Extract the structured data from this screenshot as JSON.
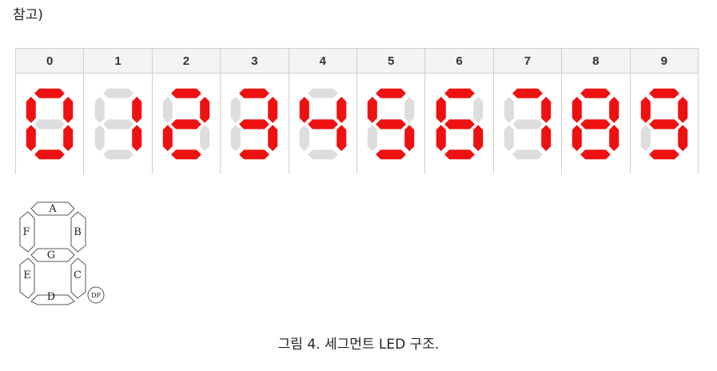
{
  "intro_text": "참고)",
  "segments_table": {
    "on_color": "#ee1111",
    "off_color": "#dddddd",
    "digits": [
      {
        "label": "0",
        "segments": [
          "A",
          "B",
          "C",
          "D",
          "E",
          "F"
        ]
      },
      {
        "label": "1",
        "segments": [
          "B",
          "C"
        ]
      },
      {
        "label": "2",
        "segments": [
          "A",
          "B",
          "G",
          "E",
          "D"
        ]
      },
      {
        "label": "3",
        "segments": [
          "A",
          "B",
          "G",
          "C",
          "D"
        ]
      },
      {
        "label": "4",
        "segments": [
          "F",
          "G",
          "B",
          "C"
        ]
      },
      {
        "label": "5",
        "segments": [
          "A",
          "F",
          "G",
          "C",
          "D"
        ]
      },
      {
        "label": "6",
        "segments": [
          "A",
          "F",
          "G",
          "E",
          "C",
          "D"
        ]
      },
      {
        "label": "7",
        "segments": [
          "A",
          "B",
          "C"
        ]
      },
      {
        "label": "8",
        "segments": [
          "A",
          "B",
          "C",
          "D",
          "E",
          "F",
          "G"
        ]
      },
      {
        "label": "9",
        "segments": [
          "A",
          "B",
          "C",
          "D",
          "F",
          "G"
        ]
      }
    ]
  },
  "diagram": {
    "labels": {
      "A": "A",
      "B": "B",
      "C": "C",
      "D": "D",
      "E": "E",
      "F": "F",
      "G": "G"
    },
    "dp_label": "DP"
  },
  "caption": "그림 4. 세그먼트 LED 구조."
}
